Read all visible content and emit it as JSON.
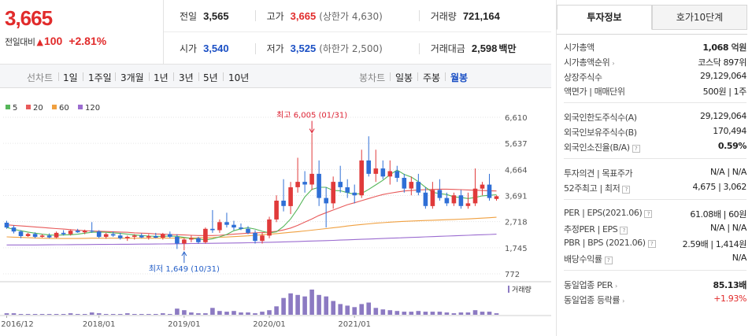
{
  "price": {
    "current": "3,665",
    "change_label": "전일대비",
    "change_arrow": "▲",
    "change_value": "100",
    "change_pct": "+2.81%"
  },
  "quotes": {
    "prev_close_label": "전일",
    "prev_close": "3,565",
    "high_label": "고가",
    "high": "3,665",
    "upper_limit": "(상한가 4,630)",
    "volume_label": "거래량",
    "volume": "721,164",
    "open_label": "시가",
    "open": "3,540",
    "low_label": "저가",
    "low": "3,525",
    "lower_limit": "(하한가 2,500)",
    "amount_label": "거래대금",
    "amount": "2,598",
    "amount_unit": "백만"
  },
  "toolbar": {
    "line_label": "선차트",
    "periods": [
      "1일",
      "1주일",
      "3개월",
      "1년",
      "3년",
      "5년",
      "10년"
    ],
    "candle_label": "봉차트",
    "candle_periods": [
      "일봉",
      "주봉",
      "월봉"
    ],
    "active_candle": "월봉"
  },
  "tabs": {
    "invest": "투자정보",
    "hoga": "호가10단계"
  },
  "invest_info": [
    {
      "label": "시가총액",
      "value": "1,068",
      "unit": "억원",
      "bold": true
    },
    {
      "label": "시가총액순위",
      "value": "코스닥 897위",
      "arrow": true
    },
    {
      "label": "상장주식수",
      "value": "29,129,064"
    },
    {
      "label": "액면가 | 매매단위",
      "value": "500원 | 1주"
    },
    {
      "label": "외국인한도주식수(A)",
      "value": "29,129,064"
    },
    {
      "label": "외국인보유주식수(B)",
      "value": "170,494"
    },
    {
      "label": "외국인소진율(B/A)",
      "value": "0.59%",
      "bold": true,
      "q": true
    },
    {
      "label": "투자의견 | 목표주가",
      "value": "N/A | N/A"
    },
    {
      "label": "52주최고 | 최저",
      "value": "4,675 | 3,062",
      "q": true
    },
    {
      "label": "PER | EPS(2021.06)",
      "value": "61.08배 | 60원",
      "q": true
    },
    {
      "label": "추정PER | EPS",
      "value": "N/A | N/A",
      "q": true
    },
    {
      "label": "PBR | BPS (2021.06)",
      "value": "2.59배 | 1,414원",
      "q": true
    },
    {
      "label": "배당수익률",
      "value": "N/A",
      "q": true
    },
    {
      "label": "동일업종 PER",
      "value": "85.13배",
      "bold": true,
      "arrow": true
    },
    {
      "label": "동일업종 등락률",
      "value": "+1.93%",
      "red": true,
      "arrow": true
    }
  ],
  "chart_data": {
    "type": "candlestick",
    "interval": "monthly",
    "legend": [
      {
        "name": "5",
        "color": "#56b65a"
      },
      {
        "name": "20",
        "color": "#e85a5a"
      },
      {
        "name": "60",
        "color": "#f0a040"
      },
      {
        "name": "120",
        "color": "#9b6cd0"
      }
    ],
    "y_ticks": [
      "6,610",
      "5,637",
      "4,664",
      "3,691",
      "2,718",
      "1,745",
      "772"
    ],
    "y_range": [
      772,
      6610
    ],
    "x_ticks": [
      "2016/12",
      "2018/01",
      "2019/01",
      "2020/01",
      "2021/01"
    ],
    "volume_label": "거래량",
    "max_annotation": "최고 6,005 (01/31)",
    "min_annotation": "최저 1,649 (10/31)",
    "candles": [
      [
        2680,
        2750,
        2450,
        2500
      ],
      [
        2500,
        2580,
        2280,
        2350
      ],
      [
        2350,
        2400,
        2100,
        2180
      ],
      [
        2180,
        2300,
        2150,
        2260
      ],
      [
        2260,
        2320,
        2100,
        2150
      ],
      [
        2150,
        2250,
        2120,
        2200
      ],
      [
        2200,
        2280,
        2100,
        2130
      ],
      [
        2130,
        2350,
        2100,
        2300
      ],
      [
        2300,
        2400,
        2200,
        2250
      ],
      [
        2250,
        2420,
        2200,
        2380
      ],
      [
        2380,
        2450,
        2300,
        2320
      ],
      [
        2320,
        2420,
        2250,
        2380
      ],
      [
        2380,
        2700,
        2300,
        2350
      ],
      [
        2350,
        2400,
        2100,
        2150
      ],
      [
        2150,
        2300,
        2080,
        2250
      ],
      [
        2250,
        2350,
        2150,
        2200
      ],
      [
        2200,
        2300,
        2050,
        2100
      ],
      [
        2100,
        2200,
        2000,
        2150
      ],
      [
        2150,
        2250,
        2050,
        2200
      ],
      [
        2200,
        2280,
        2100,
        2130
      ],
      [
        2130,
        2250,
        2050,
        2180
      ],
      [
        2180,
        2300,
        2100,
        2120
      ],
      [
        2120,
        2300,
        2050,
        2250
      ],
      [
        2250,
        2350,
        2100,
        2150
      ],
      [
        2150,
        2250,
        1700,
        1900
      ],
      [
        1900,
        2100,
        1649,
        2050
      ],
      [
        2050,
        2200,
        1950,
        2100
      ],
      [
        2100,
        2150,
        1900,
        1950
      ],
      [
        1950,
        2500,
        1900,
        2450
      ],
      [
        2450,
        3150,
        2300,
        2400
      ],
      [
        2400,
        2800,
        2300,
        2700
      ],
      [
        2700,
        3050,
        2500,
        2600
      ],
      [
        2600,
        2750,
        2400,
        2500
      ],
      [
        2500,
        2650,
        2400,
        2450
      ],
      [
        2450,
        2550,
        2250,
        2300
      ],
      [
        2300,
        2400,
        1900,
        2000
      ],
      [
        2000,
        2300,
        1900,
        2200
      ],
      [
        2200,
        2900,
        2100,
        2800
      ],
      [
        2800,
        3700,
        2700,
        3500
      ],
      [
        3500,
        4300,
        3100,
        3300
      ],
      [
        3300,
        4200,
        3000,
        4000
      ],
      [
        4000,
        5100,
        3800,
        4200
      ],
      [
        4200,
        4600,
        3800,
        4100
      ],
      [
        4100,
        6005,
        3900,
        4500
      ],
      [
        4500,
        5000,
        3300,
        3600
      ],
      [
        3600,
        4000,
        2500,
        3400
      ],
      [
        3400,
        4400,
        3200,
        4200
      ],
      [
        4200,
        4800,
        3800,
        4000
      ],
      [
        4000,
        4300,
        3600,
        3800
      ],
      [
        3800,
        4100,
        3400,
        3700
      ],
      [
        3700,
        5400,
        3600,
        5000
      ],
      [
        5000,
        5900,
        4400,
        4500
      ],
      [
        4500,
        5400,
        4200,
        4700
      ],
      [
        4700,
        5000,
        4300,
        4400
      ],
      [
        4400,
        5000,
        4100,
        4600
      ],
      [
        4600,
        4800,
        4200,
        4350
      ],
      [
        4350,
        4500,
        3800,
        3950
      ],
      [
        3950,
        4400,
        3700,
        4200
      ],
      [
        4200,
        4500,
        3700,
        3800
      ],
      [
        3800,
        4000,
        3200,
        3300
      ],
      [
        3300,
        4200,
        3200,
        3900
      ],
      [
        3900,
        4300,
        3500,
        3600
      ],
      [
        3600,
        3800,
        3300,
        3400
      ],
      [
        3400,
        3800,
        3300,
        3700
      ],
      [
        3700,
        3900,
        3200,
        3300
      ],
      [
        3300,
        3800,
        3200,
        3400
      ],
      [
        3400,
        4700,
        3300,
        3950
      ],
      [
        3950,
        4200,
        3700,
        4100
      ],
      [
        4100,
        4500,
        3500,
        3600
      ],
      [
        3565,
        3700,
        3500,
        3665
      ]
    ],
    "ma5": [
      2500,
      2430,
      2380,
      2330,
      2290,
      2250,
      2220,
      2210,
      2220,
      2230,
      2250,
      2290,
      2320,
      2330,
      2320,
      2300,
      2280,
      2250,
      2220,
      2200,
      2180,
      2170,
      2170,
      2180,
      2170,
      2130,
      2090,
      2070,
      2040,
      2080,
      2150,
      2240,
      2380,
      2450,
      2490,
      2440,
      2360,
      2300,
      2340,
      2540,
      2820,
      3200,
      3640,
      3920,
      4000,
      4000,
      3880,
      3870,
      3800,
      3740,
      3770,
      3920,
      4090,
      4260,
      4470,
      4640,
      4480,
      4380,
      4210,
      4000,
      3810,
      3760,
      3730,
      3640,
      3620,
      3580,
      3620,
      3680,
      3700,
      3720
    ],
    "ma20": [
      2600,
      2580,
      2560,
      2540,
      2520,
      2500,
      2480,
      2460,
      2440,
      2420,
      2400,
      2380,
      2370,
      2360,
      2350,
      2340,
      2330,
      2320,
      2300,
      2290,
      2280,
      2260,
      2250,
      2240,
      2230,
      2220,
      2210,
      2200,
      2200,
      2200,
      2210,
      2230,
      2250,
      2270,
      2290,
      2300,
      2310,
      2330,
      2360,
      2410,
      2480,
      2580,
      2700,
      2820,
      2950,
      3050,
      3150,
      3250,
      3350,
      3420,
      3500,
      3580,
      3660,
      3730,
      3780,
      3820,
      3860,
      3880,
      3900,
      3910,
      3920,
      3930,
      3930,
      3920,
      3910,
      3900,
      3890,
      3880,
      3870,
      3860
    ],
    "ma60": [
      2150,
      2140,
      2130,
      2120,
      2110,
      2100,
      2095,
      2090,
      2090,
      2090,
      2090,
      2095,
      2100,
      2100,
      2100,
      2100,
      2100,
      2100,
      2100,
      2100,
      2100,
      2100,
      2100,
      2105,
      2105,
      2110,
      2110,
      2115,
      2120,
      2125,
      2135,
      2145,
      2160,
      2175,
      2190,
      2210,
      2230,
      2250,
      2270,
      2295,
      2320,
      2345,
      2370,
      2400,
      2430,
      2460,
      2490,
      2520,
      2555,
      2585,
      2610,
      2635,
      2660,
      2680,
      2700,
      2715,
      2730,
      2740,
      2750,
      2760,
      2770,
      2780,
      2790,
      2800,
      2810,
      2820,
      2835,
      2850,
      2865,
      2880
    ],
    "ma120": [
      1850,
      1850,
      1850,
      1850,
      1850,
      1852,
      1854,
      1856,
      1858,
      1860,
      1862,
      1864,
      1866,
      1868,
      1870,
      1872,
      1874,
      1876,
      1878,
      1880,
      1882,
      1885,
      1888,
      1891,
      1894,
      1897,
      1900,
      1903,
      1906,
      1910,
      1914,
      1918,
      1922,
      1926,
      1930,
      1936,
      1942,
      1948,
      1955,
      1962,
      1970,
      1978,
      1986,
      1994,
      2002,
      2010,
      2020,
      2030,
      2040,
      2050,
      2060,
      2070,
      2080,
      2090,
      2100,
      2110,
      2120,
      2130,
      2140,
      2150,
      2160,
      2170,
      2180,
      2190,
      2200,
      2210,
      2220,
      2230,
      2240,
      2250
    ],
    "volumes": [
      2,
      2,
      1,
      1,
      1,
      1,
      1,
      1,
      1,
      2,
      1,
      1,
      3,
      2,
      1,
      1,
      1,
      2,
      1,
      1,
      1,
      1,
      2,
      1,
      8,
      6,
      3,
      2,
      2,
      9,
      5,
      4,
      5,
      3,
      3,
      2,
      4,
      6,
      11,
      22,
      28,
      26,
      24,
      33,
      26,
      24,
      18,
      14,
      12,
      10,
      14,
      16,
      9,
      7,
      6,
      5,
      4,
      4,
      5,
      4,
      4,
      4,
      3,
      2,
      3,
      3,
      6,
      4,
      4,
      2
    ],
    "volume_max": 33
  }
}
